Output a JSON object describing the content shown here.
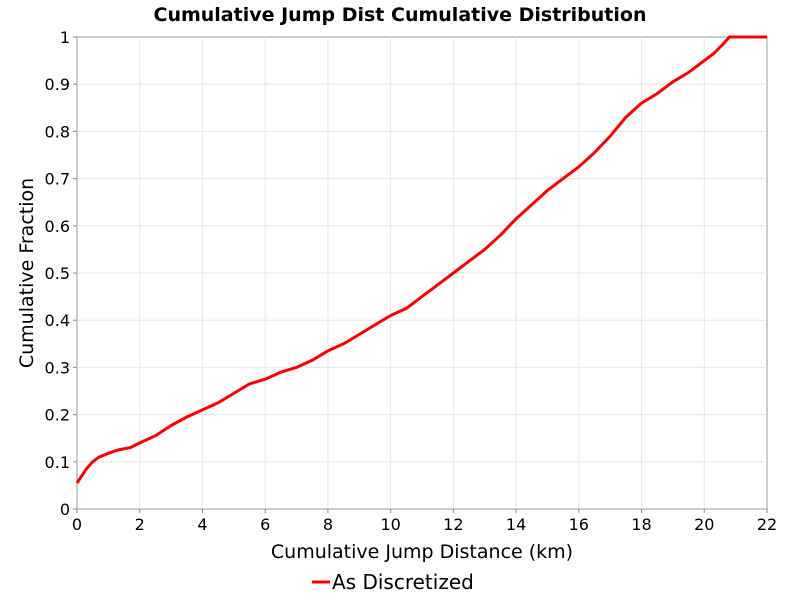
{
  "chart_data": {
    "type": "line",
    "title": "Cumulative Jump Dist Cumulative Distribution",
    "xlabel": "Cumulative Jump Distance (km)",
    "ylabel": "Cumulative Fraction",
    "xlim": [
      0,
      22
    ],
    "ylim": [
      0,
      1
    ],
    "xticks": [
      "0",
      "2",
      "4",
      "6",
      "8",
      "10",
      "12",
      "14",
      "16",
      "18",
      "20",
      "22"
    ],
    "yticks": [
      "0",
      "0.1",
      "0.2",
      "0.3",
      "0.4",
      "0.5",
      "0.6",
      "0.7",
      "0.8",
      "0.9",
      "1"
    ],
    "grid": true,
    "legend_position": "bottom-center",
    "series": [
      {
        "name": "As Discretized",
        "color": "#ff0000",
        "x": [
          0,
          0.1,
          0.3,
          0.5,
          0.7,
          1.0,
          1.3,
          1.7,
          2.0,
          2.5,
          3.0,
          3.5,
          4.0,
          4.5,
          5.0,
          5.5,
          6.0,
          6.5,
          7.0,
          7.5,
          8.0,
          8.5,
          9.0,
          9.5,
          10.0,
          10.5,
          11.0,
          11.5,
          12.0,
          12.5,
          13.0,
          13.5,
          14.0,
          14.5,
          15.0,
          15.5,
          16.0,
          16.5,
          17.0,
          17.5,
          18.0,
          18.5,
          19.0,
          19.5,
          20.0,
          20.3,
          20.6,
          20.8,
          21.0,
          22.0
        ],
        "y": [
          0.055,
          0.065,
          0.085,
          0.1,
          0.11,
          0.118,
          0.125,
          0.13,
          0.14,
          0.155,
          0.177,
          0.195,
          0.21,
          0.225,
          0.245,
          0.265,
          0.275,
          0.29,
          0.3,
          0.315,
          0.335,
          0.35,
          0.37,
          0.39,
          0.41,
          0.425,
          0.45,
          0.475,
          0.5,
          0.525,
          0.55,
          0.58,
          0.615,
          0.645,
          0.675,
          0.7,
          0.725,
          0.755,
          0.79,
          0.83,
          0.86,
          0.88,
          0.905,
          0.925,
          0.95,
          0.965,
          0.985,
          1.0,
          1.0,
          1.0
        ]
      }
    ]
  }
}
